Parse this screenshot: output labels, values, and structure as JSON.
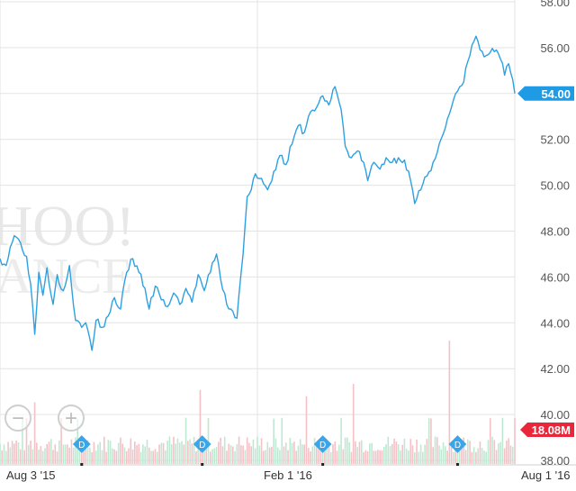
{
  "chart_data": {
    "type": "line",
    "watermark": {
      "line1": "HOO!",
      "line2": "ANCE"
    },
    "ylim": [
      38,
      58
    ],
    "y_ticks": [
      "38.00",
      "40.00",
      "42.00",
      "44.00",
      "46.00",
      "48.00",
      "50.00",
      "52.00",
      "54.00",
      "56.00",
      "58.00"
    ],
    "x_ticks": [
      {
        "label": "Aug 3 '15",
        "i": 0
      },
      {
        "label": "Feb 1 '16",
        "i": 126
      },
      {
        "label": "Aug 1 '16",
        "i": 252
      }
    ],
    "grid": true,
    "series": [
      {
        "color": "#2ea0e2",
        "anchors": [
          [
            0,
            46.8
          ],
          [
            3,
            46.5
          ],
          [
            5,
            47.3
          ],
          [
            7,
            47.8
          ],
          [
            10,
            47.5
          ],
          [
            13,
            46.9
          ],
          [
            15,
            45.7
          ],
          [
            17,
            43.5
          ],
          [
            19,
            46.2
          ],
          [
            21,
            45.2
          ],
          [
            23,
            46.4
          ],
          [
            26,
            44.8
          ],
          [
            28,
            46.1
          ],
          [
            31,
            45.4
          ],
          [
            34,
            46.5
          ],
          [
            37,
            44.1
          ],
          [
            40,
            43.8
          ],
          [
            42,
            44.0
          ],
          [
            44,
            43.3
          ],
          [
            45,
            42.8
          ],
          [
            47,
            44.1
          ],
          [
            50,
            43.8
          ],
          [
            53,
            44.3
          ],
          [
            56,
            45.1
          ],
          [
            59,
            44.6
          ],
          [
            62,
            46.2
          ],
          [
            65,
            46.8
          ],
          [
            68,
            46.2
          ],
          [
            71,
            45.5
          ],
          [
            73,
            44.6
          ],
          [
            76,
            45.6
          ],
          [
            79,
            45.0
          ],
          [
            82,
            44.7
          ],
          [
            85,
            45.3
          ],
          [
            88,
            44.8
          ],
          [
            91,
            45.5
          ],
          [
            94,
            44.9
          ],
          [
            97,
            46.1
          ],
          [
            100,
            45.4
          ],
          [
            103,
            46.2
          ],
          [
            106,
            47.0
          ],
          [
            108,
            45.9
          ],
          [
            111,
            44.8
          ],
          [
            114,
            44.5
          ],
          [
            116,
            44.2
          ],
          [
            119,
            47.0
          ],
          [
            121,
            49.5
          ],
          [
            123,
            49.8
          ],
          [
            125,
            50.5
          ],
          [
            128,
            50.3
          ],
          [
            131,
            49.8
          ],
          [
            134,
            50.6
          ],
          [
            137,
            51.3
          ],
          [
            140,
            50.9
          ],
          [
            143,
            51.8
          ],
          [
            146,
            52.6
          ],
          [
            149,
            52.3
          ],
          [
            152,
            53.2
          ],
          [
            155,
            53.4
          ],
          [
            158,
            53.9
          ],
          [
            161,
            53.5
          ],
          [
            164,
            54.3
          ],
          [
            167,
            53.3
          ],
          [
            169,
            51.7
          ],
          [
            172,
            51.2
          ],
          [
            175,
            51.5
          ],
          [
            178,
            51.0
          ],
          [
            180,
            50.2
          ],
          [
            183,
            51.0
          ],
          [
            186,
            50.7
          ],
          [
            189,
            51.2
          ],
          [
            192,
            51.0
          ],
          [
            195,
            51.2
          ],
          [
            198,
            51.1
          ],
          [
            201,
            50.2
          ],
          [
            203,
            49.2
          ],
          [
            206,
            49.8
          ],
          [
            209,
            50.4
          ],
          [
            212,
            51.0
          ],
          [
            215,
            51.8
          ],
          [
            218,
            52.5
          ],
          [
            221,
            53.4
          ],
          [
            224,
            54.1
          ],
          [
            227,
            54.5
          ],
          [
            229,
            55.4
          ],
          [
            231,
            56.1
          ],
          [
            233,
            56.5
          ],
          [
            235,
            55.9
          ],
          [
            237,
            55.6
          ],
          [
            240,
            55.8
          ],
          [
            243,
            55.9
          ],
          [
            245,
            55.5
          ],
          [
            247,
            54.8
          ],
          [
            249,
            55.3
          ],
          [
            251,
            54.6
          ],
          [
            252,
            54.0
          ]
        ],
        "last_value_label": "54.00"
      }
    ],
    "volume": {
      "last_label": "18.08M",
      "dividend_marker_label": "D",
      "dividend_at": [
        40,
        99,
        158,
        224
      ],
      "spikes": [
        [
          220,
          4.0
        ],
        [
          173,
          2.6
        ],
        [
          17,
          2.0
        ],
        [
          98,
          2.4
        ],
        [
          150,
          2.2
        ]
      ]
    },
    "zoom_controls": {
      "zoom_out_label": "−",
      "zoom_in_label": "+"
    }
  }
}
